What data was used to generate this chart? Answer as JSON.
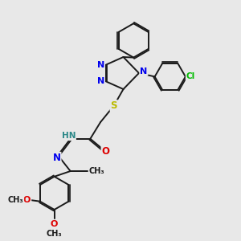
{
  "bg_color": "#e8e8e8",
  "bond_color": "#1a1a1a",
  "bond_width": 1.4,
  "dbo": 0.055,
  "atom_colors": {
    "N": "#0000ee",
    "S": "#bbbb00",
    "O": "#dd0000",
    "Cl": "#00bb00",
    "C": "#1a1a1a",
    "H": "#2a8888"
  },
  "figsize": [
    3.0,
    3.0
  ],
  "dpi": 100,
  "xlim": [
    0,
    10
  ],
  "ylim": [
    0,
    10
  ]
}
